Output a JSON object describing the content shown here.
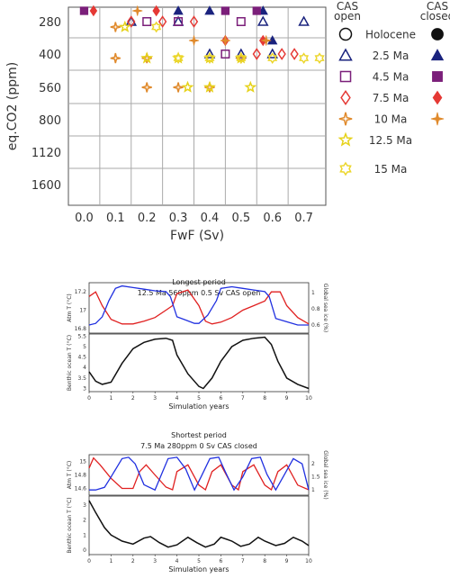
{
  "chart_data": [
    {
      "type": "scatter",
      "xlabel": "FwF (Sv)",
      "ylabel": "eq.CO2 (ppm)",
      "x_ticks": [
        "0.0",
        "0.1",
        "0.2",
        "0.3",
        "0.4",
        "0.5",
        "0.6",
        "0.7"
      ],
      "y_ticks": [
        "280",
        "400",
        "560",
        "800",
        "1120",
        "1600"
      ],
      "grid": true,
      "legend": {
        "header_open": "CAS open",
        "header_closed": "CAS closed",
        "entries": [
          {
            "label": "Holocene",
            "marker": "circle",
            "color": "#111111"
          },
          {
            "label": "2.5 Ma",
            "marker": "triangle",
            "color": "#1a237e"
          },
          {
            "label": "4.5 Ma",
            "marker": "square",
            "color": "#7b1f7a"
          },
          {
            "label": "7.5 Ma",
            "marker": "diamond",
            "color": "#e53935"
          },
          {
            "label": "10 Ma",
            "marker": "star4",
            "color": "#e08a2c"
          },
          {
            "label": "12.5 Ma",
            "marker": "star5",
            "color": "#e6d21a"
          },
          {
            "label": "15 Ma",
            "marker": "star6",
            "color": "#ecd62c"
          }
        ]
      },
      "series": [
        {
          "name": "2.5 Ma",
          "state": "open",
          "points": [
            [
              0.15,
              280
            ],
            [
              0.3,
              280
            ],
            [
              0.4,
              400
            ],
            [
              0.5,
              400
            ],
            [
              0.57,
              280
            ],
            [
              0.6,
              400
            ],
            [
              0.7,
              280
            ]
          ]
        },
        {
          "name": "2.5 Ma",
          "state": "closed",
          "points": [
            [
              0.3,
              250
            ],
            [
              0.4,
              250
            ],
            [
              0.57,
              250
            ],
            [
              0.6,
              350
            ]
          ]
        },
        {
          "name": "4.5 Ma",
          "state": "open",
          "points": [
            [
              0.2,
              280
            ],
            [
              0.3,
              280
            ],
            [
              0.45,
              400
            ],
            [
              0.5,
              280
            ]
          ]
        },
        {
          "name": "4.5 Ma",
          "state": "closed",
          "points": [
            [
              0.0,
              250
            ],
            [
              0.45,
              250
            ],
            [
              0.55,
              250
            ]
          ]
        },
        {
          "name": "7.5 Ma",
          "state": "open",
          "points": [
            [
              0.15,
              280
            ],
            [
              0.25,
              280
            ],
            [
              0.35,
              280
            ],
            [
              0.55,
              400
            ],
            [
              0.63,
              400
            ],
            [
              0.67,
              400
            ]
          ]
        },
        {
          "name": "7.5 Ma",
          "state": "closed",
          "points": [
            [
              0.03,
              250
            ],
            [
              0.23,
              250
            ],
            [
              0.45,
              350
            ],
            [
              0.57,
              350
            ]
          ]
        },
        {
          "name": "10 Ma",
          "state": "open",
          "points": [
            [
              0.1,
              300
            ],
            [
              0.1,
              420
            ],
            [
              0.2,
              420
            ],
            [
              0.2,
              560
            ],
            [
              0.3,
              560
            ],
            [
              0.4,
              560
            ],
            [
              0.5,
              420
            ]
          ]
        },
        {
          "name": "10 Ma",
          "state": "closed",
          "points": [
            [
              0.17,
              250
            ],
            [
              0.35,
              350
            ],
            [
              0.45,
              350
            ],
            [
              0.58,
              350
            ]
          ]
        },
        {
          "name": "12.5 Ma",
          "state": "open",
          "points": [
            [
              0.13,
              300
            ],
            [
              0.2,
              420
            ],
            [
              0.3,
              420
            ],
            [
              0.33,
              560
            ],
            [
              0.4,
              420
            ],
            [
              0.4,
              560
            ],
            [
              0.5,
              420
            ],
            [
              0.53,
              560
            ]
          ]
        },
        {
          "name": "15 Ma",
          "state": "open",
          "points": [
            [
              0.23,
              300
            ],
            [
              0.3,
              420
            ],
            [
              0.4,
              420
            ],
            [
              0.5,
              420
            ],
            [
              0.6,
              420
            ],
            [
              0.7,
              420
            ],
            [
              0.75,
              420
            ]
          ]
        }
      ]
    },
    {
      "type": "line",
      "title": "Longest period",
      "subtitle": "12.5 Ma 560ppm 0.5 Sv CAS open",
      "xlabel": "Simulation years",
      "x_ticks": [
        "0",
        "1",
        "2",
        "3",
        "4",
        "5",
        "6",
        "7",
        "8",
        "9",
        "10"
      ],
      "top_panel": {
        "ylabel_left": "Atm T (°C)",
        "ylabel_right": "Global sea ice (%)",
        "left_ticks": [
          "16.8",
          "17",
          "17.2"
        ],
        "right_ticks": [
          "0.6",
          "0.8",
          "1"
        ],
        "series": [
          {
            "name": "Atm T",
            "color": "#e02020",
            "x": [
              0,
              0.3,
              0.6,
              1,
              1.5,
              2,
              2.5,
              3,
              3.5,
              3.8,
              4,
              4.5,
              5,
              5.3,
              5.6,
              6,
              6.5,
              7,
              7.5,
              8,
              8.3,
              8.7,
              9,
              9.5,
              10
            ],
            "y": [
              17.15,
              17.2,
              17.05,
              16.9,
              16.85,
              16.85,
              16.88,
              16.92,
              17.0,
              17.05,
              17.18,
              17.22,
              17.05,
              16.88,
              16.85,
              16.87,
              16.92,
              17.0,
              17.05,
              17.1,
              17.2,
              17.2,
              17.05,
              16.92,
              16.85
            ]
          },
          {
            "name": "Global sea ice",
            "color": "#2030e0",
            "x": [
              0,
              0.3,
              0.6,
              0.9,
              1.2,
              1.5,
              2,
              2.5,
              3,
              3.5,
              3.7,
              4,
              4.4,
              4.8,
              5,
              5.4,
              5.8,
              6,
              6.5,
              7,
              7.5,
              8,
              8.2,
              8.5,
              9,
              9.5,
              10
            ],
            "y": [
              0.6,
              0.62,
              0.7,
              0.9,
              1.05,
              1.08,
              1.06,
              1.04,
              1.02,
              1.01,
              0.95,
              0.7,
              0.66,
              0.62,
              0.62,
              0.72,
              0.9,
              1.05,
              1.07,
              1.05,
              1.03,
              1.01,
              0.95,
              0.68,
              0.64,
              0.6,
              0.6
            ]
          }
        ]
      },
      "bottom_panel": {
        "ylabel": "Benthic ocean T (°C)",
        "ticks": [
          "3",
          "3.5",
          "4",
          "4.5",
          "5",
          "5.5"
        ],
        "series": [
          {
            "name": "Benthic ocean T",
            "color": "#111111",
            "x": [
              0,
              0.3,
              0.6,
              1,
              1.5,
              2,
              2.5,
              3,
              3.5,
              3.8,
              4,
              4.5,
              5,
              5.2,
              5.6,
              6,
              6.5,
              7,
              7.5,
              8,
              8.3,
              8.6,
              9,
              9.5,
              10
            ],
            "y": [
              3.8,
              3.35,
              3.2,
              3.3,
              4.2,
              4.9,
              5.2,
              5.35,
              5.4,
              5.3,
              4.6,
              3.7,
              3.1,
              3.0,
              3.5,
              4.3,
              5.0,
              5.3,
              5.4,
              5.45,
              5.1,
              4.3,
              3.5,
              3.2,
              3.0
            ]
          }
        ]
      }
    },
    {
      "type": "line",
      "title": "Shortest period",
      "subtitle": "7.5 Ma 280ppm 0 Sv CAS closed",
      "xlabel": "Simulation years",
      "x_ticks": [
        "0",
        "1",
        "2",
        "3",
        "4",
        "5",
        "6",
        "7",
        "8",
        "9",
        "10"
      ],
      "top_panel": {
        "ylabel_left": "Atm T (°C)",
        "ylabel_right": "Global sea ice (%)",
        "left_ticks": [
          "14.6",
          "14.8",
          "15"
        ],
        "right_ticks": [
          "1",
          "1.5",
          "2"
        ],
        "series": [
          {
            "name": "Atm T",
            "color": "#e02020",
            "x": [
              0,
              0.2,
              0.5,
              1,
              1.5,
              2,
              2.3,
              2.6,
              3,
              3.5,
              3.8,
              4,
              4.5,
              5,
              5.3,
              5.6,
              6,
              6.5,
              6.8,
              7,
              7.5,
              8,
              8.3,
              8.6,
              9,
              9.5,
              10
            ],
            "y": [
              14.9,
              15.05,
              14.95,
              14.75,
              14.6,
              14.6,
              14.85,
              14.95,
              14.8,
              14.62,
              14.58,
              14.85,
              14.95,
              14.65,
              14.58,
              14.85,
              14.95,
              14.65,
              14.58,
              14.85,
              14.95,
              14.65,
              14.58,
              14.85,
              14.95,
              14.65,
              14.58
            ]
          },
          {
            "name": "Global sea ice",
            "color": "#2030e0",
            "x": [
              0,
              0.3,
              0.7,
              1,
              1.5,
              1.8,
              2.1,
              2.5,
              3,
              3.3,
              3.6,
              4,
              4.4,
              4.8,
              5.1,
              5.5,
              5.9,
              6.2,
              6.6,
              7,
              7.4,
              7.8,
              8.1,
              8.5,
              8.9,
              9.3,
              9.7,
              10
            ],
            "y": [
              1.0,
              1.0,
              1.1,
              1.5,
              2.2,
              2.25,
              2.0,
              1.2,
              1.0,
              1.6,
              2.2,
              2.25,
              1.8,
              1.0,
              1.5,
              2.2,
              2.25,
              1.7,
              1.0,
              1.5,
              2.2,
              2.25,
              1.6,
              1.0,
              1.6,
              2.2,
              2.0,
              1.0
            ]
          }
        ]
      },
      "bottom_panel": {
        "ylabel": "Benthic ocean T (°C)",
        "ticks": [
          "0",
          "1",
          "2",
          "3"
        ],
        "series": [
          {
            "name": "Benthic ocean T",
            "color": "#111111",
            "x": [
              0,
              0.3,
              0.7,
              1,
              1.5,
              2,
              2.5,
              2.8,
              3.2,
              3.6,
              4,
              4.5,
              4.9,
              5.3,
              5.7,
              6,
              6.5,
              6.9,
              7.3,
              7.7,
              8,
              8.5,
              8.9,
              9.3,
              9.7,
              10
            ],
            "y": [
              3.3,
              2.5,
              1.5,
              1.0,
              0.6,
              0.4,
              0.8,
              0.9,
              0.5,
              0.2,
              0.35,
              0.85,
              0.5,
              0.2,
              0.4,
              0.85,
              0.6,
              0.25,
              0.4,
              0.85,
              0.6,
              0.3,
              0.45,
              0.85,
              0.6,
              0.3
            ]
          }
        ]
      }
    }
  ]
}
